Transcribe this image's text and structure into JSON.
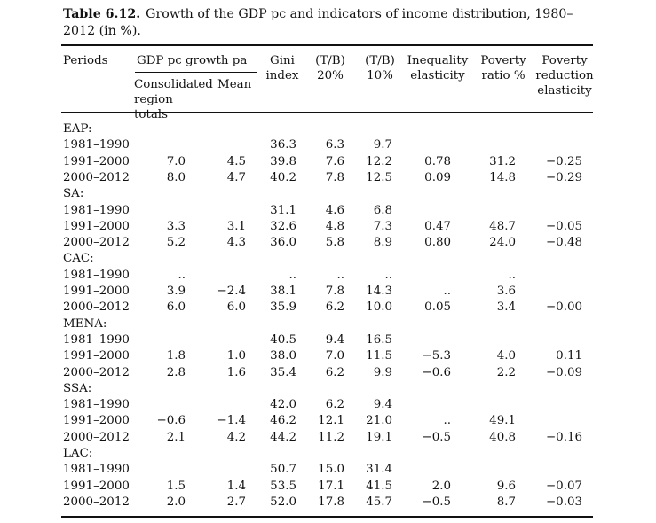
{
  "caption": {
    "label": "Table 6.12.",
    "text": "Growth of the GDP pc and indicators of income distribution, 1980–2012 (in %)."
  },
  "headers": {
    "periods": "Periods",
    "gdp_group": "GDP pc growth pa",
    "consolidated": "Consolidated region totals",
    "mean": "Mean",
    "gini": "Gini index",
    "tb20": "(T/B) 20%",
    "tb10": "(T/B) 10%",
    "ineq": "Inequality elasticity",
    "pov_ratio": "Poverty ratio %",
    "pov_red": "Poverty reduction elasticity"
  },
  "groups": [
    {
      "name": "EAP:",
      "rows": [
        {
          "period": "1981–1990",
          "cons": "",
          "mean": "",
          "gini": "36.3",
          "tb20": "6.3",
          "tb10": "9.7",
          "ineq": "",
          "pov": "",
          "red": ""
        },
        {
          "period": "1991–2000",
          "cons": "7.0",
          "mean": "4.5",
          "gini": "39.8",
          "tb20": "7.6",
          "tb10": "12.2",
          "ineq": "0.78",
          "pov": "31.2",
          "red": "−0.25"
        },
        {
          "period": "2000–2012",
          "cons": "8.0",
          "mean": "4.7",
          "gini": "40.2",
          "tb20": "7.8",
          "tb10": "12.5",
          "ineq": "0.09",
          "pov": "14.8",
          "red": "−0.29"
        }
      ]
    },
    {
      "name": "SA:",
      "rows": [
        {
          "period": "1981–1990",
          "cons": "",
          "mean": "",
          "gini": "31.1",
          "tb20": "4.6",
          "tb10": "6.8",
          "ineq": "",
          "pov": "",
          "red": ""
        },
        {
          "period": "1991–2000",
          "cons": "3.3",
          "mean": "3.1",
          "gini": "32.6",
          "tb20": "4.8",
          "tb10": "7.3",
          "ineq": "0.47",
          "pov": "48.7",
          "red": "−0.05"
        },
        {
          "period": "2000–2012",
          "cons": "5.2",
          "mean": "4.3",
          "gini": "36.0",
          "tb20": "5.8",
          "tb10": "8.9",
          "ineq": "0.80",
          "pov": "24.0",
          "red": "−0.48"
        }
      ]
    },
    {
      "name": "CAC:",
      "rows": [
        {
          "period": "1981–1990",
          "cons": "..",
          "mean": "",
          "gini": "..",
          "tb20": "..",
          "tb10": "..",
          "ineq": "",
          "pov": "..",
          "red": ""
        },
        {
          "period": "1991–2000",
          "cons": "3.9",
          "mean": "−2.4",
          "gini": "38.1",
          "tb20": "7.8",
          "tb10": "14.3",
          "ineq": "..",
          "pov": "3.6",
          "red": ""
        },
        {
          "period": "2000–2012",
          "cons": "6.0",
          "mean": "6.0",
          "gini": "35.9",
          "tb20": "6.2",
          "tb10": "10.0",
          "ineq": "0.05",
          "pov": "3.4",
          "red": "−0.00"
        }
      ]
    },
    {
      "name": "MENA:",
      "rows": [
        {
          "period": "1981–1990",
          "cons": "",
          "mean": "",
          "gini": "40.5",
          "tb20": "9.4",
          "tb10": "16.5",
          "ineq": "",
          "pov": "",
          "red": ""
        },
        {
          "period": "1991–2000",
          "cons": "1.8",
          "mean": "1.0",
          "gini": "38.0",
          "tb20": "7.0",
          "tb10": "11.5",
          "ineq": "−5.3",
          "pov": "4.0",
          "red": "0.11"
        },
        {
          "period": "2000–2012",
          "cons": "2.8",
          "mean": "1.6",
          "gini": "35.4",
          "tb20": "6.2",
          "tb10": "9.9",
          "ineq": "−0.6",
          "pov": "2.2",
          "red": "−0.09"
        }
      ]
    },
    {
      "name": "SSA:",
      "rows": [
        {
          "period": "1981–1990",
          "cons": "",
          "mean": "",
          "gini": "42.0",
          "tb20": "6.2",
          "tb10": "9.4",
          "ineq": "",
          "pov": "",
          "red": ""
        },
        {
          "period": "1991–2000",
          "cons": "−0.6",
          "mean": "−1.4",
          "gini": "46.2",
          "tb20": "12.1",
          "tb10": "21.0",
          "ineq": "..",
          "pov": "49.1",
          "red": ""
        },
        {
          "period": "2000–2012",
          "cons": "2.1",
          "mean": "4.2",
          "gini": "44.2",
          "tb20": "11.2",
          "tb10": "19.1",
          "ineq": "−0.5",
          "pov": "40.8",
          "red": "−0.16"
        }
      ]
    },
    {
      "name": "LAC:",
      "rows": [
        {
          "period": "1981–1990",
          "cons": "",
          "mean": "",
          "gini": "50.7",
          "tb20": "15.0",
          "tb10": "31.4",
          "ineq": "",
          "pov": "",
          "red": ""
        },
        {
          "period": "1991–2000",
          "cons": "1.5",
          "mean": "1.4",
          "gini": "53.5",
          "tb20": "17.1",
          "tb10": "41.5",
          "ineq": "2.0",
          "pov": "9.6",
          "red": "−0.07"
        },
        {
          "period": "2000–2012",
          "cons": "2.0",
          "mean": "2.7",
          "gini": "52.0",
          "tb20": "17.8",
          "tb10": "45.7",
          "ineq": "−0.5",
          "pov": "8.7",
          "red": "−0.03"
        }
      ]
    }
  ]
}
